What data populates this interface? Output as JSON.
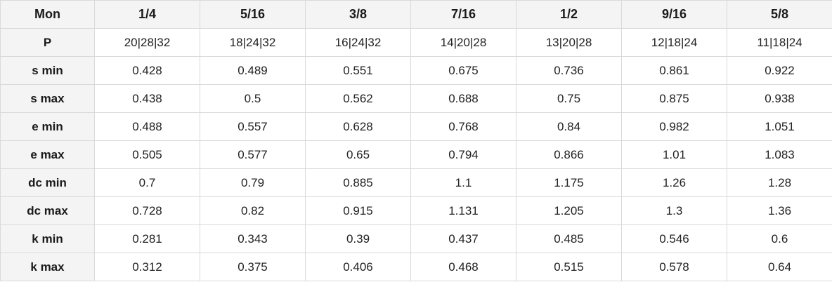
{
  "table": {
    "header": [
      "Mon",
      "1/4",
      "5/16",
      "3/8",
      "7/16",
      "1/2",
      "9/16",
      "5/8"
    ],
    "rows": [
      {
        "label": "P",
        "values": [
          "20|28|32",
          "18|24|32",
          "16|24|32",
          "14|20|28",
          "13|20|28",
          "12|18|24",
          "11|18|24"
        ]
      },
      {
        "label": "s min",
        "values": [
          "0.428",
          "0.489",
          "0.551",
          "0.675",
          "0.736",
          "0.861",
          "0.922"
        ]
      },
      {
        "label": "s max",
        "values": [
          "0.438",
          "0.5",
          "0.562",
          "0.688",
          "0.75",
          "0.875",
          "0.938"
        ]
      },
      {
        "label": "e min",
        "values": [
          "0.488",
          "0.557",
          "0.628",
          "0.768",
          "0.84",
          "0.982",
          "1.051"
        ]
      },
      {
        "label": "e max",
        "values": [
          "0.505",
          "0.577",
          "0.65",
          "0.794",
          "0.866",
          "1.01",
          "1.083"
        ]
      },
      {
        "label": "dc min",
        "values": [
          "0.7",
          "0.79",
          "0.885",
          "1.1",
          "1.175",
          "1.26",
          "1.28"
        ]
      },
      {
        "label": "dc max",
        "values": [
          "0.728",
          "0.82",
          "0.915",
          "1.131",
          "1.205",
          "1.3",
          "1.36"
        ]
      },
      {
        "label": "k min",
        "values": [
          "0.281",
          "0.343",
          "0.39",
          "0.437",
          "0.485",
          "0.546",
          "0.6"
        ]
      },
      {
        "label": "k max",
        "values": [
          "0.312",
          "0.375",
          "0.406",
          "0.468",
          "0.515",
          "0.578",
          "0.64"
        ]
      }
    ]
  }
}
